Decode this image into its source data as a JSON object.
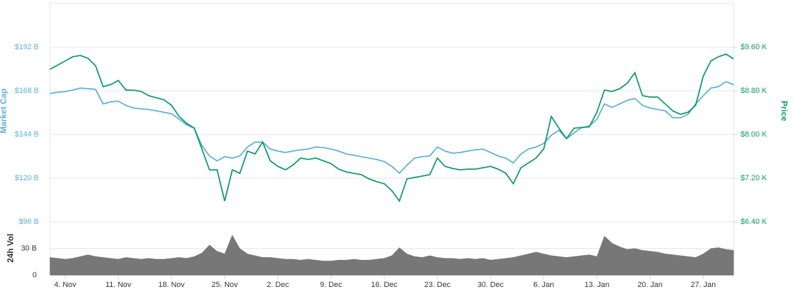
{
  "chart_data": [
    {
      "type": "line",
      "ylabel": "Market Cap",
      "y2label": "Price",
      "categories": [
        null,
        null,
        "4. Nov",
        null,
        null,
        null,
        null,
        null,
        null,
        "11. Nov",
        null,
        null,
        null,
        null,
        null,
        null,
        "18. Nov",
        null,
        null,
        null,
        null,
        null,
        null,
        "25. Nov",
        null,
        null,
        null,
        null,
        null,
        null,
        "2. Dec",
        null,
        null,
        null,
        null,
        null,
        null,
        "9. Dec",
        null,
        null,
        null,
        null,
        null,
        null,
        "16. Dec",
        null,
        null,
        null,
        null,
        null,
        null,
        "23. Dec",
        null,
        null,
        null,
        null,
        null,
        null,
        "30. Dec",
        null,
        null,
        null,
        null,
        null,
        null,
        "6. Jan",
        null,
        null,
        null,
        null,
        null,
        null,
        "13. Jan",
        null,
        null,
        null,
        null,
        null,
        null,
        "20. Jan",
        null,
        null,
        null,
        null,
        null,
        null,
        "27. Jan",
        null,
        null,
        null,
        null
      ],
      "series": [
        {
          "color": "#5fb0dc",
          "axis": "y",
          "values": [
            166.5,
            167.2,
            167.6,
            168.4,
            169.5,
            169.2,
            168.8,
            160.8,
            161.9,
            162.3,
            160.0,
            158.5,
            158.1,
            157.7,
            157.0,
            156.2,
            155.4,
            152.4,
            149.3,
            147.4,
            137.9,
            132.2,
            129.5,
            131.8,
            131.0,
            132.2,
            137.1,
            139.8,
            139.8,
            136.0,
            134.9,
            134.1,
            134.9,
            135.6,
            136.0,
            137.1,
            136.8,
            136.0,
            134.9,
            133.3,
            132.6,
            131.8,
            131.0,
            130.3,
            129.1,
            126.5,
            122.7,
            127.2,
            131.0,
            131.8,
            132.2,
            137.1,
            134.9,
            133.7,
            134.1,
            134.9,
            135.6,
            136.0,
            134.1,
            132.2,
            131.0,
            128.4,
            133.3,
            136.0,
            137.1,
            139.1,
            143.6,
            146.3,
            141.7,
            144.8,
            147.8,
            148.6,
            152.4,
            160.8,
            158.9,
            160.8,
            162.7,
            163.8,
            160.0,
            158.5,
            157.7,
            157.0,
            153.2,
            153.2,
            155.1,
            160.8,
            165.3,
            169.5,
            170.3,
            173.0,
            171.4
          ]
        },
        {
          "color": "#0e9a6c",
          "axis": "y2",
          "values": [
            9194,
            9270,
            9346,
            9423,
            9448,
            9397,
            9258,
            8876,
            8914,
            8991,
            8813,
            8813,
            8788,
            8711,
            8673,
            8635,
            8534,
            8330,
            8203,
            8115,
            7734,
            7353,
            7353,
            6781,
            7353,
            7289,
            7695,
            7645,
            7861,
            7518,
            7416,
            7353,
            7441,
            7568,
            7543,
            7568,
            7518,
            7467,
            7365,
            7314,
            7289,
            7264,
            7187,
            7137,
            7099,
            6972,
            6781,
            7187,
            7213,
            7238,
            7264,
            7568,
            7416,
            7378,
            7353,
            7365,
            7365,
            7391,
            7416,
            7365,
            7289,
            7099,
            7391,
            7480,
            7568,
            7734,
            8330,
            8115,
            7924,
            8115,
            8127,
            8140,
            8407,
            8813,
            8788,
            8838,
            8940,
            9131,
            8711,
            8686,
            8686,
            8559,
            8432,
            8369,
            8407,
            8534,
            9067,
            9346,
            9423,
            9473,
            9384
          ]
        }
      ],
      "ylim": [
        96,
        216
      ],
      "yticks": [
        {
          "value": 96,
          "label": "$96 B"
        },
        {
          "value": 120,
          "label": "$120 B"
        },
        {
          "value": 144,
          "label": "$144 B"
        },
        {
          "value": 168,
          "label": "$168 B"
        },
        {
          "value": 192,
          "label": "$192 B"
        }
      ],
      "y2lim": [
        6400,
        10400
      ],
      "y2ticks": [
        {
          "value": 6400,
          "label": "$6.40 K"
        },
        {
          "value": 7200,
          "label": "$7.20 K"
        },
        {
          "value": 8000,
          "label": "$8.00 K"
        },
        {
          "value": 8800,
          "label": "$8.80 K"
        },
        {
          "value": 9600,
          "label": "$9.60 K"
        }
      ],
      "grid": true
    },
    {
      "type": "area",
      "ylabel": "24h Vol",
      "color": "#777777",
      "values": [
        20,
        19,
        18,
        19,
        21,
        23,
        21,
        20,
        19,
        18,
        20,
        19,
        18,
        19,
        18,
        18,
        19,
        20,
        19,
        21,
        25,
        34,
        27,
        24,
        45,
        30,
        24,
        22,
        20,
        20,
        19,
        18,
        18,
        17,
        18,
        17,
        16,
        16,
        17,
        17,
        18,
        17,
        17,
        18,
        19,
        22,
        31,
        24,
        21,
        20,
        22,
        20,
        19,
        19,
        18,
        19,
        18,
        19,
        17,
        18,
        19,
        20,
        22,
        24,
        26,
        24,
        22,
        21,
        20,
        21,
        22,
        23,
        21,
        44,
        36,
        32,
        29,
        30,
        28,
        27,
        26,
        24,
        23,
        22,
        21,
        20,
        24,
        30,
        31,
        29,
        28
      ],
      "ylim": [
        0,
        60
      ],
      "yticks": [
        0,
        {
          "value": 30,
          "label": "30 B"
        }
      ],
      "grid": true
    }
  ]
}
